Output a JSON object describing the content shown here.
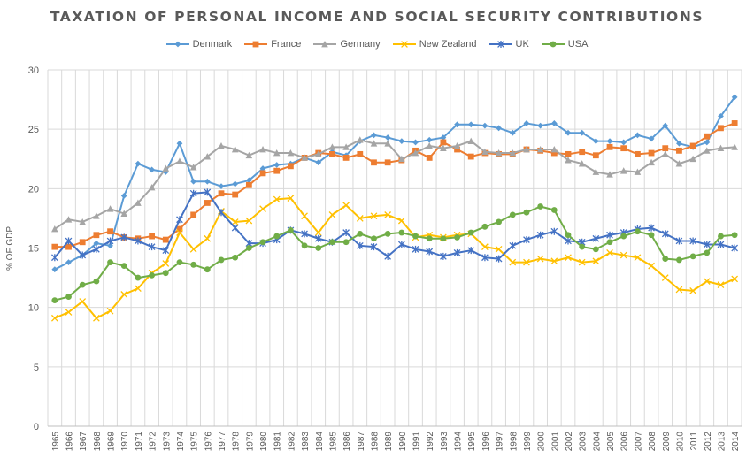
{
  "chart_data": {
    "type": "line",
    "title": "TAXATION OF PERSONAL INCOME AND SOCIAL SECURITY CONTRIBUTIONS",
    "xlabel": "",
    "ylabel": "% OF GDP",
    "ylim": [
      0,
      30
    ],
    "yticks": [
      "0",
      "5",
      "10",
      "15",
      "20",
      "25",
      "30"
    ],
    "grid": true,
    "legend_position": "top",
    "categories": [
      "1965",
      "1966",
      "1967",
      "1968",
      "1969",
      "1970",
      "1971",
      "1972",
      "1973",
      "1974",
      "1975",
      "1976",
      "1977",
      "1978",
      "1979",
      "1980",
      "1981",
      "1982",
      "1983",
      "1984",
      "1985",
      "1986",
      "1987",
      "1988",
      "1989",
      "1990",
      "1991",
      "1992",
      "1993",
      "1994",
      "1995",
      "1996",
      "1997",
      "1998",
      "1999",
      "2000",
      "2001",
      "2002",
      "2003",
      "2004",
      "2005",
      "2006",
      "2007",
      "2008",
      "2009",
      "2010",
      "2011",
      "2012",
      "2013",
      "2014"
    ],
    "series": [
      {
        "name": "Denmark",
        "color": "#5B9BD5",
        "marker": "diamond",
        "values": [
          13.2,
          13.8,
          14.4,
          15.4,
          15.2,
          19.4,
          22.1,
          21.6,
          21.4,
          23.8,
          20.6,
          20.6,
          20.2,
          20.4,
          20.7,
          21.7,
          22.0,
          22.1,
          22.6,
          22.2,
          23.1,
          22.8,
          24.0,
          24.5,
          24.3,
          24.0,
          23.9,
          24.1,
          24.3,
          25.4,
          25.4,
          25.3,
          25.1,
          24.7,
          25.5,
          25.3,
          25.5,
          24.7,
          24.7,
          24.0,
          24.0,
          23.9,
          24.5,
          24.2,
          25.3,
          23.8,
          23.5,
          23.9,
          26.1,
          27.7
        ]
      },
      {
        "name": "France",
        "color": "#ED7D31",
        "marker": "square",
        "values": [
          15.1,
          15.1,
          15.5,
          16.1,
          16.4,
          15.9,
          15.8,
          16.0,
          15.7,
          16.6,
          17.8,
          18.8,
          19.6,
          19.5,
          20.3,
          21.3,
          21.5,
          21.9,
          22.6,
          23.0,
          22.9,
          22.6,
          22.9,
          22.2,
          22.2,
          22.4,
          23.2,
          22.6,
          23.9,
          23.3,
          22.7,
          23.0,
          22.9,
          22.9,
          23.3,
          23.2,
          23.0,
          22.9,
          23.1,
          22.8,
          23.5,
          23.4,
          22.9,
          23.0,
          23.4,
          23.2,
          23.6,
          24.4,
          25.1,
          25.5
        ]
      },
      {
        "name": "Germany",
        "color": "#A5A5A5",
        "marker": "triangle",
        "values": [
          16.6,
          17.4,
          17.2,
          17.7,
          18.3,
          17.9,
          18.8,
          20.1,
          21.7,
          22.3,
          21.8,
          22.7,
          23.6,
          23.3,
          22.8,
          23.3,
          23.0,
          23.0,
          22.6,
          22.9,
          23.5,
          23.5,
          24.1,
          23.8,
          23.8,
          22.5,
          23.0,
          23.6,
          23.4,
          23.6,
          24.0,
          23.1,
          23.0,
          23.0,
          23.3,
          23.3,
          23.3,
          22.4,
          22.1,
          21.4,
          21.2,
          21.5,
          21.4,
          22.2,
          22.9,
          22.1,
          22.5,
          23.2,
          23.4,
          23.5
        ]
      },
      {
        "name": "New Zealand",
        "color": "#FFC000",
        "marker": "x",
        "values": [
          9.1,
          9.6,
          10.5,
          9.1,
          9.7,
          11.1,
          11.6,
          12.9,
          13.7,
          16.3,
          14.9,
          15.8,
          18.1,
          17.2,
          17.3,
          18.3,
          19.1,
          19.2,
          17.7,
          16.3,
          17.8,
          18.6,
          17.5,
          17.7,
          17.8,
          17.3,
          15.9,
          16.1,
          15.9,
          16.1,
          16.2,
          15.1,
          14.9,
          13.8,
          13.8,
          14.1,
          13.9,
          14.2,
          13.8,
          13.9,
          14.6,
          14.4,
          14.2,
          13.5,
          12.5,
          11.5,
          11.4,
          12.2,
          11.9,
          12.4
        ]
      },
      {
        "name": "UK",
        "color": "#4472C4",
        "marker": "star",
        "values": [
          14.2,
          15.6,
          14.4,
          14.9,
          15.6,
          15.9,
          15.6,
          15.1,
          14.8,
          17.4,
          19.6,
          19.7,
          18.0,
          16.7,
          15.4,
          15.4,
          15.7,
          16.5,
          16.2,
          15.8,
          15.5,
          16.3,
          15.2,
          15.1,
          14.3,
          15.3,
          14.9,
          14.7,
          14.3,
          14.6,
          14.8,
          14.2,
          14.1,
          15.2,
          15.7,
          16.1,
          16.4,
          15.6,
          15.5,
          15.8,
          16.1,
          16.3,
          16.6,
          16.7,
          16.2,
          15.6,
          15.6,
          15.3,
          15.3,
          15.0
        ]
      },
      {
        "name": "USA",
        "color": "#70AD47",
        "marker": "circle",
        "values": [
          10.6,
          10.9,
          11.9,
          12.2,
          13.8,
          13.5,
          12.5,
          12.7,
          12.9,
          13.8,
          13.6,
          13.2,
          14.0,
          14.2,
          15.0,
          15.5,
          16.0,
          16.5,
          15.2,
          15.0,
          15.5,
          15.5,
          16.2,
          15.8,
          16.2,
          16.3,
          16.0,
          15.8,
          15.8,
          15.9,
          16.3,
          16.8,
          17.2,
          17.8,
          18.0,
          18.5,
          18.2,
          16.1,
          15.1,
          14.9,
          15.5,
          16.0,
          16.4,
          16.1,
          14.1,
          14.0,
          14.3,
          14.6,
          16.0,
          16.1
        ]
      }
    ]
  }
}
